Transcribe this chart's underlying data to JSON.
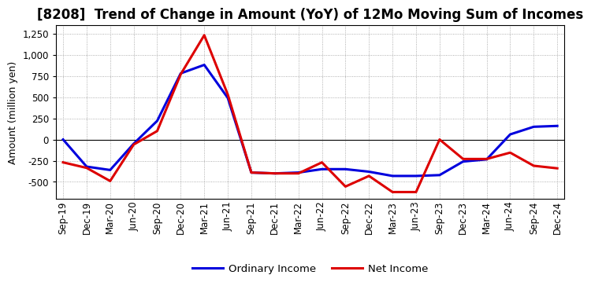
{
  "title": "[8208]  Trend of Change in Amount (YoY) of 12Mo Moving Sum of Incomes",
  "ylabel": "Amount (million yen)",
  "x_labels": [
    "Sep-19",
    "Dec-19",
    "Mar-20",
    "Jun-20",
    "Sep-20",
    "Dec-20",
    "Mar-21",
    "Jun-21",
    "Sep-21",
    "Dec-21",
    "Mar-22",
    "Jun-22",
    "Sep-22",
    "Dec-22",
    "Mar-23",
    "Jun-23",
    "Sep-23",
    "Dec-23",
    "Mar-24",
    "Jun-24",
    "Sep-24",
    "Dec-24"
  ],
  "ordinary_income": [
    0,
    -320,
    -360,
    -50,
    220,
    780,
    880,
    490,
    -390,
    -400,
    -390,
    -350,
    -350,
    -380,
    -430,
    -430,
    -420,
    -260,
    -235,
    60,
    150,
    160
  ],
  "net_income": [
    -270,
    -335,
    -490,
    -60,
    100,
    770,
    1230,
    530,
    -390,
    -400,
    -400,
    -270,
    -555,
    -430,
    -620,
    -620,
    0,
    -230,
    -230,
    -155,
    -310,
    -340
  ],
  "ordinary_income_color": "#0000dd",
  "net_income_color": "#dd0000",
  "ylim": [
    -700,
    1350
  ],
  "yticks": [
    -500,
    -250,
    0,
    250,
    500,
    750,
    1000,
    1250
  ],
  "background_color": "#ffffff",
  "grid_color": "#999999",
  "legend_ordinary": "Ordinary Income",
  "legend_net": "Net Income",
  "line_width": 2.2,
  "title_fontsize": 12,
  "axis_fontsize": 8.5,
  "ylabel_fontsize": 9
}
